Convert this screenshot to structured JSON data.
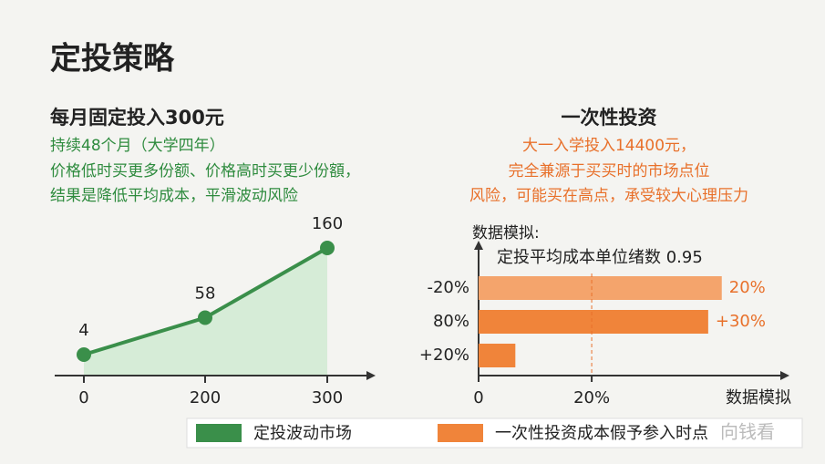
{
  "title": "定投策略",
  "left": {
    "heading": "每月固定投入300元",
    "lines": [
      "持续48个月（大学四年）",
      "价格低时买更多份额、价格高时买更少份額，",
      "结果是降低平均成本，平滑波动风险"
    ]
  },
  "right": {
    "heading": "一次性投资",
    "lines": [
      "大一入学投入14400元，",
      "完全兼源于买买时的市场点位",
      "风险，可能买在高点，承受较大心理压力"
    ]
  },
  "chart_data": [
    {
      "type": "line",
      "categories": [
        "0",
        "200",
        "300"
      ],
      "values": [
        4,
        58,
        160
      ],
      "color": "#3a8f4a",
      "fill": "#d6ecd7"
    },
    {
      "type": "hbar",
      "categories": [
        "-20%",
        "80%",
        "+20%"
      ],
      "values": [
        43,
        40.6,
        6.5
      ],
      "colors": [
        "#f4a46c",
        "#f0843a",
        "#f0843a"
      ],
      "annotations": [
        "20%",
        "+30%"
      ],
      "annotation_color": "#e8702a",
      "y_title": "数据模拟:",
      "subtitle": "定投平均成本单位绪数 0.95",
      "x_title": "数据模拟",
      "xlim": [
        0,
        54
      ],
      "xticks": [
        0,
        {
          "value": 20,
          "label": "20%"
        }
      ],
      "ref_line": 20
    }
  ],
  "legend": [
    {
      "name": "定投波动市场",
      "color": "#3a8f4a"
    },
    {
      "name": "一次性投资成本假予参入时点",
      "color": "#f0843a"
    }
  ],
  "watermark": "向钱看"
}
